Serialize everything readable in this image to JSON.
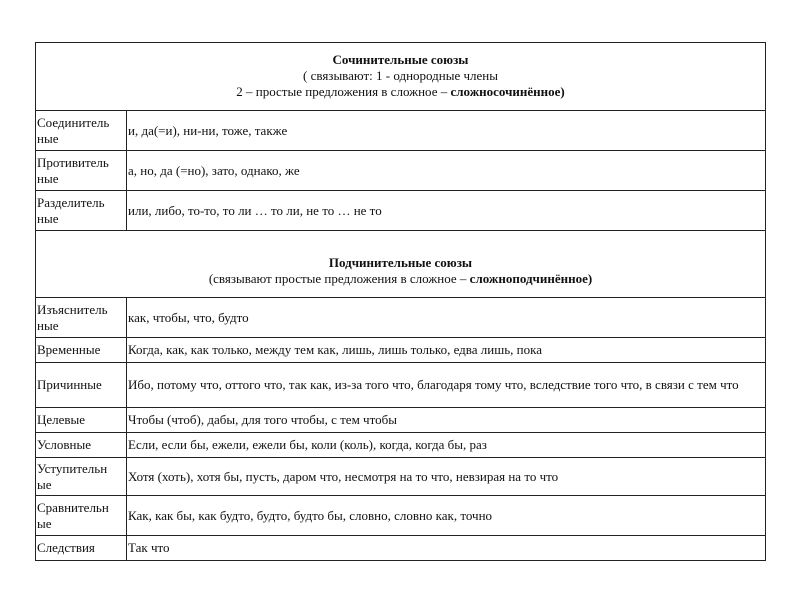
{
  "section1": {
    "title": "Сочинительные союзы",
    "line1": "( связывают: 1 -  однородные члены",
    "line2_prefix": "2 – простые предложения в сложное – ",
    "line2_bold": "сложносочинённое)",
    "rows": [
      {
        "label": "Соединитель\nные",
        "value": "и, да(=и), ни-ни, тоже, также"
      },
      {
        "label": "Противитель\nные",
        "value": "а, но, да (=но), зато, однако, же"
      },
      {
        "label": "Разделитель\nные",
        "value": "или, либо, то-то, то ли … то ли, не то … не то"
      }
    ]
  },
  "section2": {
    "title": "Подчинительные союзы",
    "line1_prefix": "(связывают простые предложения в сложное – ",
    "line1_bold": "сложноподчинённое)",
    "rows": [
      {
        "label": "Изъяснитель\nные",
        "value": "как, чтобы, что, будто"
      },
      {
        "label": "Временные",
        "value": "Когда, как, как только, между тем как, лишь, лишь только, едва лишь, пока"
      },
      {
        "label": "Причинные",
        "value": "Ибо, потому что, оттого что, так как, из-за того что, благодаря тому что, вследствие того что, в связи с тем что"
      },
      {
        "label": "Целевые",
        "value": "Чтобы (чтоб), дабы, для того чтобы, с тем чтобы"
      },
      {
        "label": "Условные",
        "value": "Если, если бы, ежели, ежели бы, коли (коль), когда, когда бы, раз"
      },
      {
        "label": "Уступительн\nые",
        "value": "Хотя (хоть), хотя бы, пусть, даром что, несмотря на то что, невзирая на то что"
      },
      {
        "label": "Сравнительн\nые",
        "value": "Как, как бы, как будто, будто, будто бы, словно, словно как, точно"
      },
      {
        "label": "Следствия",
        "value": "Так что"
      }
    ]
  }
}
